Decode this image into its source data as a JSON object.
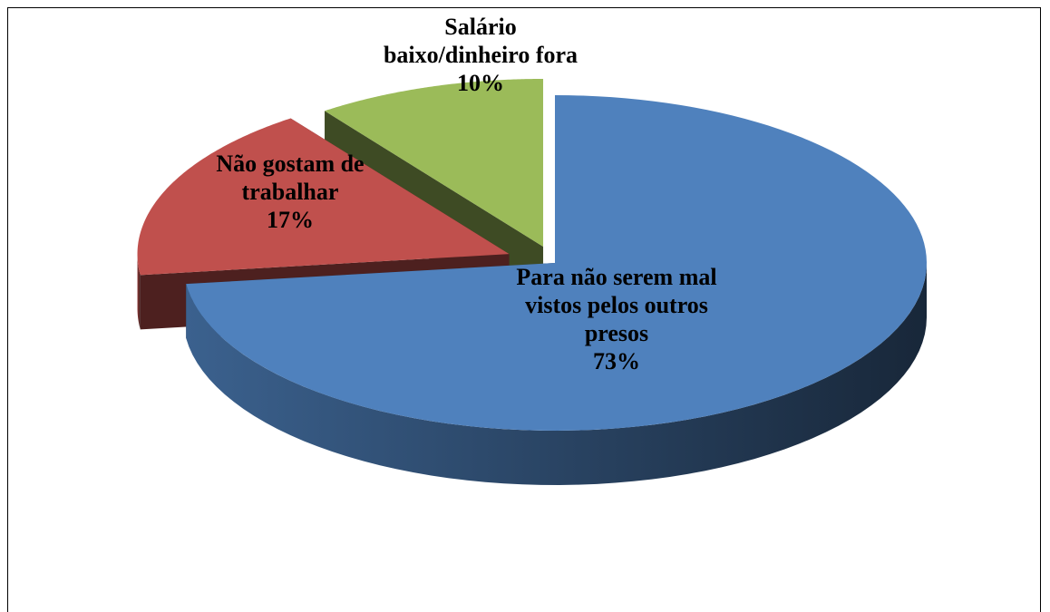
{
  "chart_data": {
    "type": "pie",
    "categories": [
      "Para não serem mal vistos pelos outros presos",
      "Não gostam de trabalhar",
      "Salário baixo/dinheiro fora"
    ],
    "values": [
      73,
      17,
      10
    ],
    "value_labels": [
      "73%",
      "17%",
      "10%"
    ],
    "colors": [
      "#4f81bd",
      "#c0504d",
      "#9bbb59"
    ]
  }
}
